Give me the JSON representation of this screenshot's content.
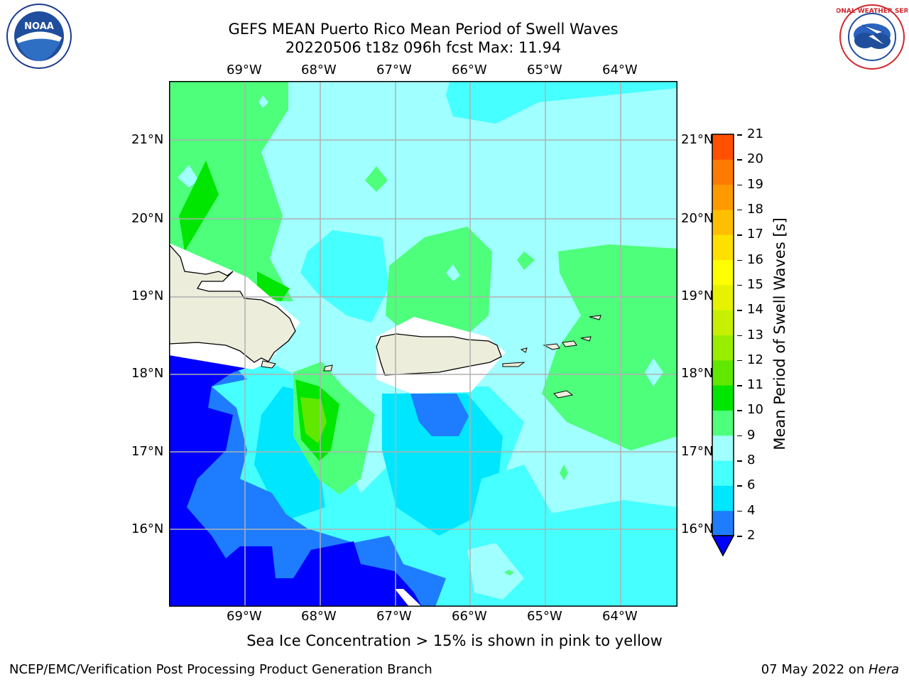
{
  "header": {
    "title_line1": "GEFS MEAN Puerto Rico Mean Period of Swell Waves",
    "title_line2": "20220506 t18z 096h fcst   Max: 11.94"
  },
  "logos": {
    "left": {
      "name": "NOAA",
      "ring_text": "NATIONAL OCEANIC AND ATMOSPHERIC ADMINISTRATION · U.S. DEPARTMENT OF COMMERCE"
    },
    "right": {
      "name": "NATIONAL WEATHER SERVICE"
    }
  },
  "map": {
    "lon_labels": [
      "69°W",
      "68°W",
      "67°W",
      "66°W",
      "65°W",
      "64°W"
    ],
    "lat_labels": [
      "21°N",
      "20°N",
      "19°N",
      "18°N",
      "17°N",
      "16°N"
    ],
    "grid": true
  },
  "colorbar": {
    "label": "Mean Period of Swell Waves [s]",
    "ticks": [
      "2",
      "4",
      "6",
      "8",
      "9",
      "10",
      "11",
      "12",
      "13",
      "14",
      "15",
      "16",
      "17",
      "18",
      "19",
      "20",
      "21"
    ],
    "colors": [
      "#0000ff",
      "#1e7dff",
      "#00e6ff",
      "#46ffff",
      "#a0ffff",
      "#4dff7a",
      "#00e600",
      "#60e800",
      "#99ee00",
      "#c6f000",
      "#e6f200",
      "#ffff00",
      "#ffe000",
      "#ffbf00",
      "#ff9900",
      "#ff7a00",
      "#ff5000",
      "#ff2800",
      "#ff0000"
    ],
    "extend_color": "#0000ff"
  },
  "caption": "Sea Ice Concentration > 15% is shown in pink to yellow",
  "footer": {
    "left": "NCEP/EMC/Verification Post Processing Product Generation Branch",
    "right_date": "07 May 2022 on ",
    "right_host": "Hera"
  }
}
